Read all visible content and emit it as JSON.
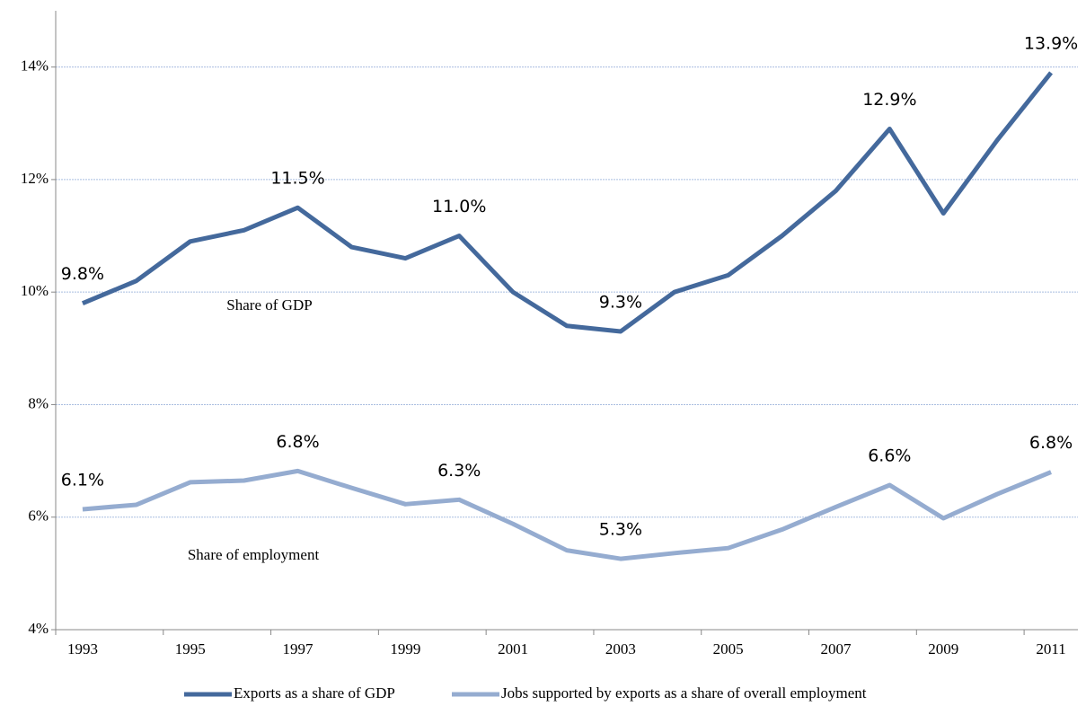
{
  "chart_data": {
    "type": "line",
    "categories": [
      "1993",
      null,
      "1995",
      null,
      "1997",
      null,
      "1999",
      null,
      "2001",
      null,
      "2003",
      null,
      "2005",
      null,
      "2007",
      null,
      "2009",
      null,
      "2011"
    ],
    "series": [
      {
        "name": "Exports as a share of GDP",
        "color": "#44699c",
        "values": [
          9.8,
          10.2,
          10.9,
          11.1,
          11.5,
          10.8,
          10.6,
          11.0,
          10.0,
          9.4,
          9.3,
          10.0,
          10.3,
          11.0,
          11.8,
          12.9,
          11.4,
          12.7,
          13.9
        ],
        "value_labels": [
          "9.8%",
          null,
          null,
          null,
          "11.5%",
          null,
          null,
          "11.0%",
          null,
          null,
          "9.3%",
          null,
          null,
          null,
          null,
          "12.9%",
          null,
          null,
          "13.9%"
        ]
      },
      {
        "name": "Jobs supported by exports as a share of overall employment",
        "color": "#95acd0",
        "values": [
          6.14,
          6.22,
          6.62,
          6.65,
          6.82,
          6.52,
          6.23,
          6.31,
          5.88,
          5.41,
          5.26,
          5.36,
          5.45,
          5.78,
          6.18,
          6.57,
          5.98,
          6.41,
          6.8
        ],
        "value_labels": [
          "6.1%",
          null,
          null,
          null,
          "6.8%",
          null,
          null,
          "6.3%",
          null,
          null,
          "5.3%",
          null,
          null,
          null,
          null,
          "6.6%",
          null,
          null,
          "6.8%"
        ]
      }
    ],
    "annotations": [
      "Share of GDP",
      "Share of employment"
    ],
    "ylim": [
      4,
      15
    ],
    "yticks": [
      {
        "value": 4,
        "label": "4%"
      },
      {
        "value": 6,
        "label": "6%"
      },
      {
        "value": 8,
        "label": "8%"
      },
      {
        "value": 10,
        "label": "10%"
      },
      {
        "value": 12,
        "label": "12%"
      },
      {
        "value": 14,
        "label": "14%"
      }
    ],
    "grid": true,
    "legend": "bottom"
  }
}
